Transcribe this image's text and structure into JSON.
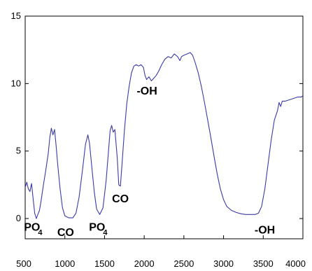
{
  "chart_data": {
    "type": "line",
    "title": "",
    "xlabel": "",
    "ylabel": "",
    "xlim": [
      500,
      4000
    ],
    "ylim": [
      -1.5,
      15
    ],
    "x_ticks": [
      "500",
      "1000",
      "1500",
      "2000",
      "2500",
      "3000",
      "3500",
      "4000"
    ],
    "y_ticks": [
      "0",
      "5",
      "10",
      "15"
    ],
    "grid": false,
    "line_color": "#3a3aa8",
    "series": [
      {
        "values": [
          [
            500,
            2.3
          ],
          [
            520,
            2.7
          ],
          [
            540,
            2.2
          ],
          [
            560,
            2.0
          ],
          [
            580,
            2.6
          ],
          [
            600,
            1.5
          ],
          [
            620,
            0.4
          ],
          [
            640,
            0.0
          ],
          [
            660,
            0.3
          ],
          [
            680,
            0.6
          ],
          [
            700,
            1.3
          ],
          [
            730,
            2.5
          ],
          [
            760,
            3.6
          ],
          [
            790,
            4.8
          ],
          [
            810,
            6.0
          ],
          [
            830,
            6.7
          ],
          [
            850,
            6.2
          ],
          [
            870,
            6.6
          ],
          [
            890,
            5.4
          ],
          [
            910,
            4.0
          ],
          [
            940,
            2.2
          ],
          [
            970,
            0.8
          ],
          [
            1000,
            0.2
          ],
          [
            1050,
            0.05
          ],
          [
            1100,
            0.05
          ],
          [
            1140,
            0.4
          ],
          [
            1180,
            1.6
          ],
          [
            1220,
            3.5
          ],
          [
            1260,
            5.5
          ],
          [
            1290,
            6.2
          ],
          [
            1310,
            5.6
          ],
          [
            1340,
            3.8
          ],
          [
            1370,
            2.0
          ],
          [
            1400,
            0.7
          ],
          [
            1440,
            0.3
          ],
          [
            1480,
            0.8
          ],
          [
            1520,
            2.8
          ],
          [
            1550,
            5.0
          ],
          [
            1570,
            6.5
          ],
          [
            1590,
            6.9
          ],
          [
            1610,
            6.4
          ],
          [
            1630,
            6.6
          ],
          [
            1660,
            4.5
          ],
          [
            1680,
            2.5
          ],
          [
            1700,
            2.4
          ],
          [
            1720,
            4.0
          ],
          [
            1750,
            6.5
          ],
          [
            1780,
            8.5
          ],
          [
            1810,
            9.8
          ],
          [
            1840,
            10.8
          ],
          [
            1870,
            11.3
          ],
          [
            1900,
            11.4
          ],
          [
            1930,
            11.3
          ],
          [
            1960,
            11.4
          ],
          [
            1990,
            11.2
          ],
          [
            2010,
            10.6
          ],
          [
            2030,
            10.3
          ],
          [
            2060,
            10.5
          ],
          [
            2090,
            10.2
          ],
          [
            2120,
            10.4
          ],
          [
            2150,
            10.6
          ],
          [
            2180,
            10.9
          ],
          [
            2220,
            11.4
          ],
          [
            2260,
            11.8
          ],
          [
            2300,
            12.0
          ],
          [
            2340,
            11.9
          ],
          [
            2380,
            12.2
          ],
          [
            2420,
            12.0
          ],
          [
            2450,
            11.7
          ],
          [
            2470,
            12.0
          ],
          [
            2500,
            12.1
          ],
          [
            2540,
            12.2
          ],
          [
            2580,
            12.3
          ],
          [
            2610,
            12.1
          ],
          [
            2640,
            11.6
          ],
          [
            2680,
            10.8
          ],
          [
            2720,
            9.8
          ],
          [
            2760,
            8.6
          ],
          [
            2800,
            7.3
          ],
          [
            2840,
            6.0
          ],
          [
            2880,
            4.6
          ],
          [
            2920,
            3.3
          ],
          [
            2960,
            2.2
          ],
          [
            3000,
            1.4
          ],
          [
            3040,
            0.9
          ],
          [
            3100,
            0.6
          ],
          [
            3160,
            0.45
          ],
          [
            3220,
            0.35
          ],
          [
            3280,
            0.3
          ],
          [
            3340,
            0.3
          ],
          [
            3400,
            0.3
          ],
          [
            3440,
            0.4
          ],
          [
            3480,
            0.9
          ],
          [
            3520,
            2.2
          ],
          [
            3560,
            4.0
          ],
          [
            3600,
            5.8
          ],
          [
            3640,
            7.3
          ],
          [
            3680,
            8.0
          ],
          [
            3700,
            8.6
          ],
          [
            3720,
            8.3
          ],
          [
            3740,
            8.7
          ],
          [
            3780,
            8.7
          ],
          [
            3830,
            8.8
          ],
          [
            3880,
            8.9
          ],
          [
            3930,
            9.0
          ],
          [
            3980,
            9.0
          ],
          [
            4000,
            9.1
          ]
        ]
      }
    ],
    "annotations": [
      {
        "text": "PO",
        "sub": "4",
        "x": 600,
        "y": -0.9
      },
      {
        "text": "CO",
        "sub": "",
        "x": 1010,
        "y": -1.3
      },
      {
        "text": "PO",
        "sub": "4",
        "x": 1420,
        "y": -0.9
      },
      {
        "text": "CO",
        "sub": "",
        "x": 1700,
        "y": 1.2
      },
      {
        "text": "-OH",
        "sub": "",
        "x": 2035,
        "y": 9.2
      },
      {
        "text": "-OH",
        "sub": "",
        "x": 3520,
        "y": -1.1
      }
    ]
  }
}
